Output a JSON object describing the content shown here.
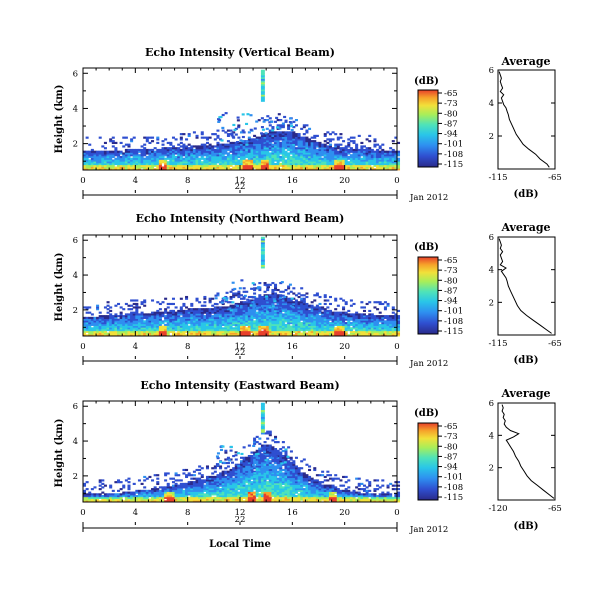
{
  "figure": {
    "shared_y_label": "Height (km)",
    "x_label": "Local Time",
    "date_label": "Jan 2012",
    "day_label": "22",
    "colorbar_unit": "(dB)",
    "colorbar_ticks": [
      "-65",
      "-73",
      "-80",
      "-87",
      "-94",
      "-101",
      "-108",
      "-115"
    ],
    "colors": {
      "scale": [
        "#2a2a8a",
        "#2f4fd0",
        "#2e8ff0",
        "#29c6e8",
        "#4fe3b8",
        "#a8ee5a",
        "#f2e03a",
        "#f6a32a",
        "#e8402a"
      ]
    }
  },
  "chart_data": [
    {
      "type": "heatmap",
      "title": "Echo Intensity (Vertical Beam)",
      "ylabel": "Height (km)",
      "xlabel": "",
      "x_ticks": [
        "0",
        "4",
        "8",
        "12",
        "16",
        "20",
        "0"
      ],
      "y_ticks": [
        "2",
        "4",
        "6"
      ],
      "xlim": [
        0,
        24
      ],
      "ylim": [
        0.5,
        6.3
      ],
      "zlim": [
        -115,
        -65
      ],
      "layer_top_km": [
        1.55,
        1.55,
        1.6,
        1.6,
        1.65,
        1.65,
        1.7,
        1.8,
        1.8,
        1.85,
        1.9,
        2.0,
        2.1,
        2.3,
        2.6,
        2.7,
        2.6,
        2.3,
        2.0,
        1.8,
        1.7,
        1.65,
        1.6,
        1.6
      ],
      "high_echo_hours": [
        6,
        12.5,
        13.8,
        19.5
      ],
      "profile": {
        "title": "Average",
        "xlabel": "(dB)",
        "x_ticks": [
          "-115",
          "-65"
        ],
        "xlim": [
          -115,
          -65
        ],
        "y_ticks": [
          "2",
          "4",
          "6"
        ],
        "ylim": [
          0,
          6
        ],
        "x": [
          -70,
          -72,
          -78,
          -82,
          -88,
          -93,
          -96,
          -99,
          -101,
          -103,
          -105,
          -106,
          -107,
          -108,
          -110,
          -111,
          -112,
          -110,
          -113,
          -111,
          -112,
          -113,
          -112,
          -113,
          -114
        ],
        "y": [
          0.1,
          0.3,
          0.6,
          0.9,
          1.2,
          1.5,
          1.8,
          2.1,
          2.4,
          2.7,
          3.0,
          3.3,
          3.5,
          3.7,
          3.9,
          4.1,
          4.3,
          4.5,
          4.7,
          4.9,
          5.1,
          5.3,
          5.5,
          5.7,
          5.9
        ]
      }
    },
    {
      "type": "heatmap",
      "title": "Echo Intensity (Northward Beam)",
      "ylabel": "Height (km)",
      "xlabel": "",
      "x_ticks": [
        "0",
        "4",
        "8",
        "12",
        "16",
        "20",
        "0"
      ],
      "y_ticks": [
        "2",
        "4",
        "6"
      ],
      "xlim": [
        0,
        24
      ],
      "ylim": [
        0.5,
        6.3
      ],
      "zlim": [
        -115,
        -65
      ],
      "layer_top_km": [
        1.6,
        1.6,
        1.65,
        1.7,
        1.75,
        1.8,
        1.85,
        1.9,
        2.0,
        2.05,
        2.1,
        2.2,
        2.4,
        2.6,
        2.9,
        2.8,
        2.6,
        2.3,
        2.1,
        1.9,
        1.8,
        1.75,
        1.7,
        1.65
      ],
      "high_echo_hours": [
        6,
        12.3,
        13.7,
        19.5
      ],
      "profile": {
        "title": "Average",
        "xlabel": "(dB)",
        "x_ticks": [
          "-115",
          "-65"
        ],
        "xlim": [
          -115,
          -65
        ],
        "y_ticks": [
          "2",
          "4",
          "6"
        ],
        "ylim": [
          0,
          6
        ],
        "x": [
          -68,
          -72,
          -78,
          -84,
          -90,
          -95,
          -98,
          -100,
          -102,
          -104,
          -106,
          -107,
          -108,
          -110,
          -112,
          -108,
          -113,
          -111,
          -112,
          -113,
          -111,
          -113,
          -112,
          -113,
          -114
        ],
        "y": [
          0.1,
          0.3,
          0.6,
          0.9,
          1.2,
          1.5,
          1.8,
          2.1,
          2.4,
          2.7,
          3.0,
          3.3,
          3.5,
          3.7,
          3.9,
          4.1,
          4.3,
          4.5,
          4.7,
          4.9,
          5.1,
          5.3,
          5.5,
          5.7,
          5.9
        ]
      }
    },
    {
      "type": "heatmap",
      "title": "Echo Intensity (Eastward Beam)",
      "ylabel": "Height (km)",
      "xlabel": "Local Time",
      "x_ticks": [
        "0",
        "4",
        "8",
        "12",
        "16",
        "20",
        "0"
      ],
      "y_ticks": [
        "2",
        "4",
        "6"
      ],
      "xlim": [
        0,
        24
      ],
      "ylim": [
        0.5,
        6.3
      ],
      "zlim": [
        -115,
        -65
      ],
      "layer_top_km": [
        0.9,
        0.9,
        0.95,
        1.0,
        1.1,
        1.2,
        1.3,
        1.4,
        1.6,
        1.8,
        2.0,
        2.3,
        2.8,
        3.4,
        3.8,
        3.3,
        2.6,
        2.0,
        1.6,
        1.3,
        1.1,
        1.0,
        0.95,
        0.9
      ],
      "high_echo_hours": [
        6.5,
        12.8,
        14.0,
        19.0
      ],
      "profile": {
        "title": "Average",
        "xlabel": "(dB)",
        "x_ticks": [
          "-120",
          "-65"
        ],
        "xlim": [
          -120,
          -65
        ],
        "y_ticks": [
          "2",
          "4",
          "6"
        ],
        "ylim": [
          0,
          6
        ],
        "x": [
          -66,
          -70,
          -76,
          -82,
          -88,
          -92,
          -95,
          -98,
          -100,
          -103,
          -105,
          -108,
          -110,
          -112,
          -105,
          -100,
          -108,
          -112,
          -114,
          -113,
          -115,
          -114,
          -116,
          -115,
          -116
        ],
        "y": [
          0.1,
          0.3,
          0.6,
          0.9,
          1.2,
          1.5,
          1.8,
          2.1,
          2.4,
          2.7,
          3.0,
          3.3,
          3.5,
          3.7,
          3.9,
          4.1,
          4.3,
          4.5,
          4.7,
          4.9,
          5.1,
          5.3,
          5.5,
          5.7,
          5.9
        ]
      }
    }
  ]
}
